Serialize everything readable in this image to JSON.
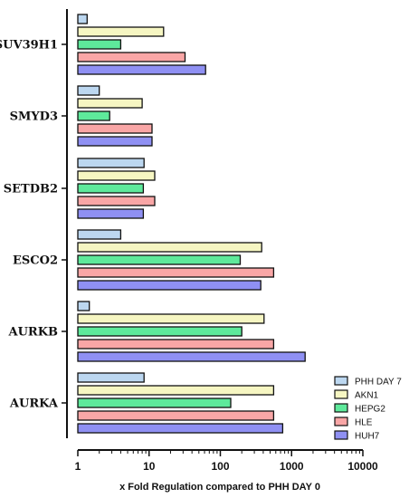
{
  "chart_data": {
    "type": "bar",
    "orientation": "horizontal",
    "scale": "log",
    "xlabel": "x Fold Regulation compared to PHH DAY 0",
    "ylabel": "",
    "title": "",
    "xlim": [
      1,
      10000
    ],
    "xticks": [
      "1",
      "10",
      "100",
      "1000",
      "10000"
    ],
    "categories": [
      "SUV39H1",
      "SMYD3",
      "SETDB2",
      "ESCO2",
      "AURKB",
      "AURKA"
    ],
    "series": [
      {
        "name": "PHH DAY 7",
        "color": "#bcd7f0",
        "values": [
          1.35,
          2.0,
          8.5,
          4.0,
          1.45,
          8.5
        ]
      },
      {
        "name": "AKN1",
        "color": "#f6f6c2",
        "values": [
          16,
          8.0,
          12,
          380,
          410,
          560
        ]
      },
      {
        "name": "HEPG2",
        "color": "#5ee99b",
        "values": [
          4.0,
          2.8,
          8.3,
          190,
          200,
          140
        ]
      },
      {
        "name": "HLE",
        "color": "#f9a6a6",
        "values": [
          32,
          11,
          12,
          560,
          560,
          560
        ]
      },
      {
        "name": "HUH7",
        "color": "#8f90f3",
        "values": [
          62,
          11,
          8.3,
          370,
          1550,
          750
        ]
      }
    ],
    "legend_position": "bottom-right",
    "grid": false
  }
}
